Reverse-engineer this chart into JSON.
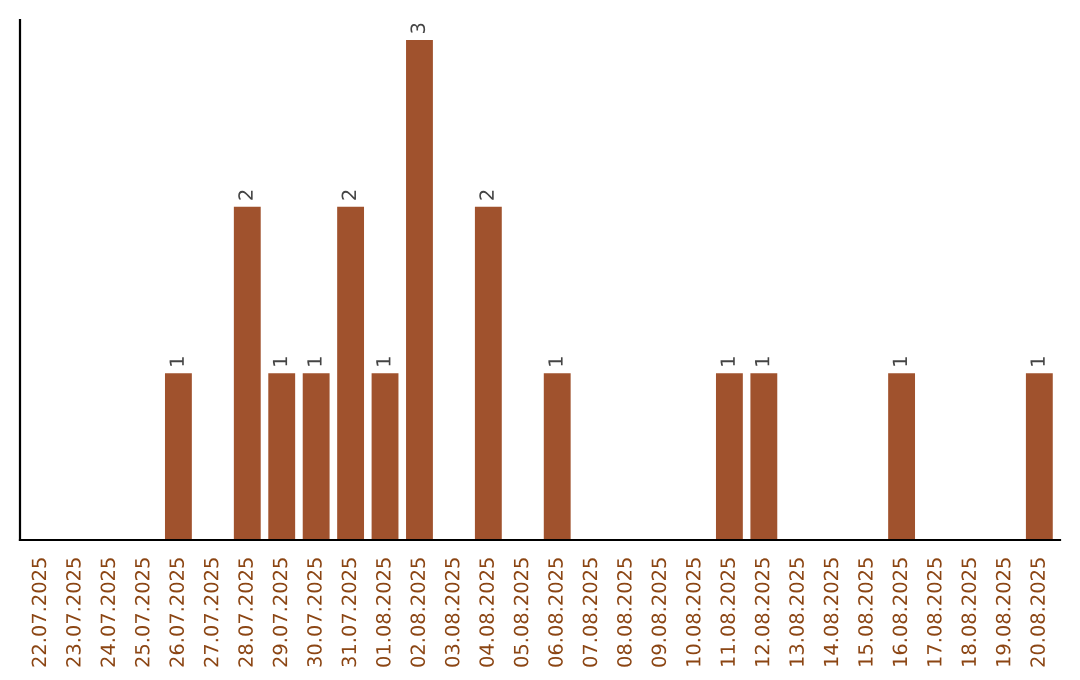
{
  "chart_data": {
    "type": "bar",
    "categories": [
      "22.07.2025",
      "23.07.2025",
      "24.07.2025",
      "25.07.2025",
      "26.07.2025",
      "27.07.2025",
      "28.07.2025",
      "29.07.2025",
      "30.07.2025",
      "31.07.2025",
      "01.08.2025",
      "02.08.2025",
      "03.08.2025",
      "04.08.2025",
      "05.08.2025",
      "06.08.2025",
      "07.08.2025",
      "08.08.2025",
      "09.08.2025",
      "10.08.2025",
      "11.08.2025",
      "12.08.2025",
      "13.08.2025",
      "14.08.2025",
      "15.08.2025",
      "16.08.2025",
      "17.08.2025",
      "18.08.2025",
      "19.08.2025",
      "20.08.2025"
    ],
    "values": [
      0,
      0,
      0,
      0,
      1,
      0,
      2,
      1,
      1,
      2,
      1,
      3,
      0,
      2,
      0,
      1,
      0,
      0,
      0,
      0,
      1,
      1,
      0,
      0,
      0,
      1,
      0,
      0,
      0,
      1
    ],
    "value_labels": [
      null,
      null,
      null,
      null,
      "1",
      null,
      "2",
      "1",
      "1",
      "2",
      "1",
      "3",
      null,
      "2",
      null,
      "1",
      null,
      null,
      null,
      null,
      "1",
      "1",
      null,
      null,
      null,
      "1",
      null,
      null,
      null,
      "1"
    ],
    "color": "#a0522d",
    "tick_labels": "x",
    "grid": false,
    "legend": false
  }
}
